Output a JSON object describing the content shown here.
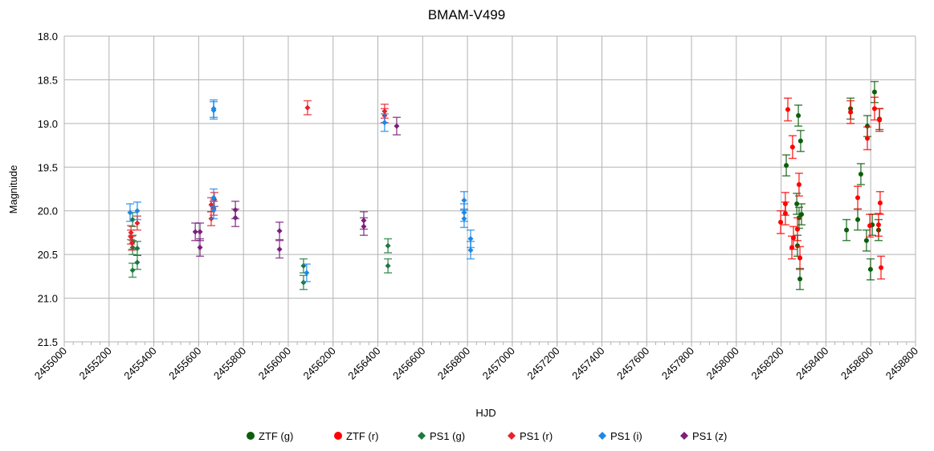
{
  "chart_data": {
    "type": "scatter",
    "title": "BMAM-V499",
    "xlabel": "HJD",
    "ylabel": "Magnitude",
    "xlim": [
      2455000,
      2458800
    ],
    "x_major_step": 200,
    "x_minor_step": 40,
    "ylim": [
      18.0,
      21.5
    ],
    "y_inverted": true,
    "y_step": 0.5,
    "grid": true,
    "legend_position": "bottom",
    "xticks": [
      "2455000",
      "2455200",
      "2455400",
      "2455600",
      "2455800",
      "2456000",
      "2456200",
      "2456400",
      "2456600",
      "2456800",
      "2457000",
      "2457200",
      "2457400",
      "2457600",
      "2457800",
      "2458000",
      "2458200",
      "2458400",
      "2458600",
      "2458800"
    ],
    "yticks": [
      "18.0",
      "18.5",
      "19.0",
      "19.5",
      "20.0",
      "20.5",
      "21.0",
      "21.5"
    ],
    "series": [
      {
        "name": "ZTF (g)",
        "color": "#0b5e0b",
        "marker": "circle",
        "err": 0.12,
        "x": [
          2458277,
          2458287,
          2458223,
          2458270,
          2458291,
          2458280,
          2458273,
          2458284,
          2458510,
          2458617,
          2458639,
          2458585,
          2458556,
          2458542,
          2458492,
          2458607,
          2458635,
          2458581,
          2458599
        ],
        "y": [
          18.91,
          19.2,
          19.48,
          19.92,
          20.04,
          20.08,
          20.4,
          20.78,
          18.83,
          18.64,
          18.95,
          19.03,
          19.58,
          20.1,
          20.22,
          20.16,
          20.22,
          20.34,
          20.67
        ]
      },
      {
        "name": "ZTF (r)",
        "color": "#ff0000",
        "marker": "circle",
        "err": 0.13,
        "x": [
          2458230,
          2458251,
          2458280,
          2458219,
          2458219,
          2458198,
          2458273,
          2458255,
          2458248,
          2458284,
          2458510,
          2458617,
          2458639,
          2458585,
          2458542,
          2458642,
          2458596,
          2458635,
          2458646
        ],
        "y": [
          18.84,
          19.27,
          19.7,
          19.92,
          20.03,
          20.13,
          20.21,
          20.31,
          20.42,
          20.54,
          18.87,
          18.83,
          18.96,
          19.17,
          19.85,
          19.91,
          20.17,
          20.16,
          20.65
        ]
      },
      {
        "name": "PS1 (g)",
        "color": "#1b7a3e",
        "marker": "diamond",
        "err": 0.08,
        "x": [
          2455305,
          2455305,
          2455305,
          2455326,
          2455326,
          2455305,
          2456068,
          2456068,
          2456445,
          2456445
        ],
        "y": [
          20.1,
          20.36,
          20.42,
          20.43,
          20.59,
          20.68,
          20.63,
          20.82,
          20.4,
          20.63
        ]
      },
      {
        "name": "PS1 (r)",
        "color": "#e8212b",
        "marker": "diamond",
        "err": 0.08,
        "x": [
          2455298,
          2455298,
          2455302,
          2455326,
          2455656,
          2455667,
          2455656,
          2455670,
          2456086,
          2456430,
          2456430
        ],
        "y": [
          20.25,
          20.3,
          20.37,
          20.14,
          19.93,
          19.97,
          20.09,
          19.87,
          18.82,
          18.86,
          18.91
        ]
      },
      {
        "name": "PS1 (i)",
        "color": "#1e88e5",
        "marker": "diamond",
        "err": 0.1,
        "x": [
          2455294,
          2455326,
          2455667,
          2455667,
          2455667,
          2455667,
          2456082,
          2456430,
          2456785,
          2456785,
          2456785,
          2456814,
          2456814
        ],
        "y": [
          20.02,
          20.0,
          19.85,
          19.99,
          18.85,
          18.83,
          20.71,
          18.99,
          19.88,
          20.02,
          20.09,
          20.32,
          20.45
        ]
      },
      {
        "name": "PS1 (z)",
        "color": "#7b1f7b",
        "marker": "diamond",
        "err": 0.1,
        "x": [
          2455585,
          2455606,
          2455606,
          2455764,
          2455764,
          2455961,
          2455961,
          2456337,
          2456337,
          2456484
        ],
        "y": [
          20.24,
          20.24,
          20.42,
          19.99,
          20.08,
          20.23,
          20.44,
          20.11,
          20.18,
          19.03
        ]
      }
    ]
  }
}
